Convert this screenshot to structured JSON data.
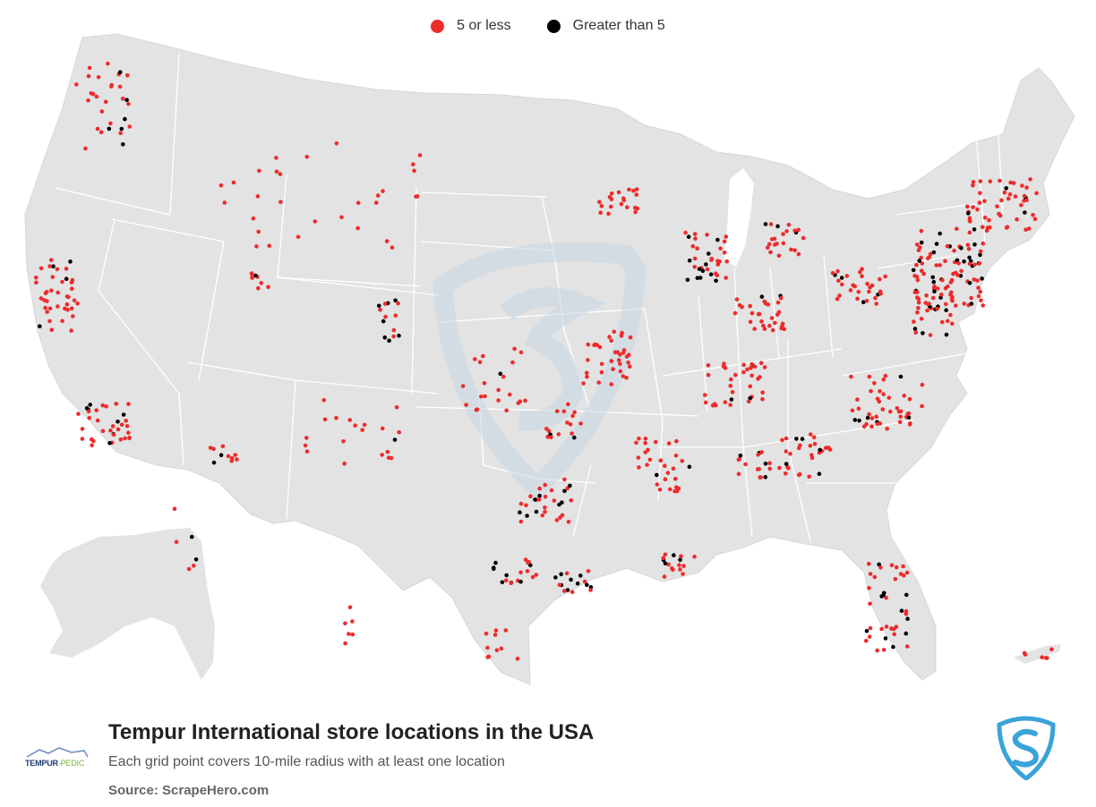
{
  "legend": {
    "items": [
      {
        "label": "5 or less",
        "color": "#ee2b2b"
      },
      {
        "label": "Greater than 5",
        "color": "#000000"
      }
    ]
  },
  "footer": {
    "title": "Tempur International store locations in the USA",
    "subtitle": "Each grid point covers 10-mile radius with at least one location",
    "source": "Source: ScrapeHero.com"
  },
  "brand": {
    "part1": "TEMPUR",
    "part2": "-PEDIC"
  },
  "colors": {
    "land": "#e3e3e3",
    "border": "#ffffff",
    "red": "#ee2b2b",
    "black": "#000000",
    "watermark": "#d8e3ec",
    "logo_blue": "#3aa3d9"
  },
  "icons": [
    "tempur-pedic-logo-icon",
    "scrapehero-shield-logo-icon"
  ]
}
